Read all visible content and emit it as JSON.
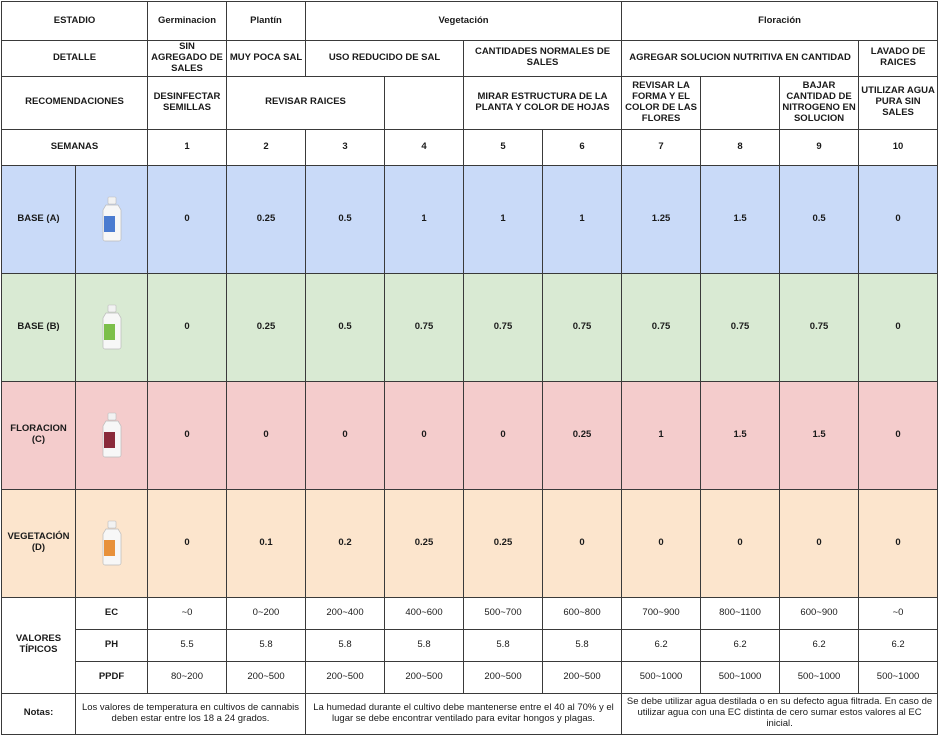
{
  "header": {
    "estadio_label": "ESTADIO",
    "estadios": [
      "Germinacion",
      "Plantín",
      "Vegetación",
      "Floración"
    ],
    "detalle_label": "DETALLE",
    "detalles": [
      "SIN AGREGADO DE SALES",
      "MUY POCA SAL",
      "USO REDUCIDO DE SAL",
      "CANTIDADES NORMALES DE SALES",
      "AGREGAR SOLUCION NUTRITIVA EN CANTIDAD",
      "LAVADO DE RAICES"
    ],
    "recomendaciones_label": "RECOMENDACIONES",
    "recomendaciones": [
      "DESINFECTAR SEMILLAS",
      "REVISAR RAICES",
      "",
      "MIRAR ESTRUCTURA DE LA PLANTA Y COLOR DE HOJAS",
      "REVISAR LA FORMA Y EL COLOR DE LAS FLORES",
      "",
      "BAJAR CANTIDAD DE NITROGENO EN SOLUCION",
      "UTILIZAR AGUA PURA SIN SALES"
    ],
    "semanas_label": "SEMANAS",
    "semanas": [
      "1",
      "2",
      "3",
      "4",
      "5",
      "6",
      "7",
      "8",
      "9",
      "10"
    ]
  },
  "products": [
    {
      "label": "BASE (A)",
      "bottle_icon": "blue-bottle-icon",
      "color": "#c9daf8",
      "label_color": "#4a7bd0",
      "values": [
        "0",
        "0.25",
        "0.5",
        "1",
        "1",
        "1",
        "1.25",
        "1.5",
        "0.5",
        "0"
      ]
    },
    {
      "label": "BASE (B)",
      "bottle_icon": "green-bottle-icon",
      "color": "#d9ead3",
      "label_color": "#7cbf4a",
      "values": [
        "0",
        "0.25",
        "0.5",
        "0.75",
        "0.75",
        "0.75",
        "0.75",
        "0.75",
        "0.75",
        "0"
      ]
    },
    {
      "label": "FLORACION (C)",
      "bottle_icon": "red-bottle-icon",
      "color": "#f4cccc",
      "label_color": "#8a2a3a",
      "values": [
        "0",
        "0",
        "0",
        "0",
        "0",
        "0.25",
        "1",
        "1.5",
        "1.5",
        "0"
      ]
    },
    {
      "label": "VEGETACIÓN (D)",
      "bottle_icon": "orange-bottle-icon",
      "color": "#fce5cd",
      "label_color": "#e8913a",
      "values": [
        "0",
        "0.1",
        "0.2",
        "0.25",
        "0.25",
        "0",
        "0",
        "0",
        "0",
        "0"
      ]
    }
  ],
  "valores": {
    "label": "VALORES TÍPICOS",
    "rows": [
      {
        "name": "EC",
        "values": [
          "~0",
          "0~200",
          "200~400",
          "400~600",
          "500~700",
          "600~800",
          "700~900",
          "800~1100",
          "600~900",
          "~0"
        ]
      },
      {
        "name": "PH",
        "values": [
          "5.5",
          "5.8",
          "5.8",
          "5.8",
          "5.8",
          "5.8",
          "6.2",
          "6.2",
          "6.2",
          "6.2"
        ]
      },
      {
        "name": "PPDF",
        "values": [
          "80~200",
          "200~500",
          "200~500",
          "200~500",
          "200~500",
          "200~500",
          "500~1000",
          "500~1000",
          "500~1000",
          "500~1000"
        ]
      }
    ]
  },
  "notas": {
    "label": "Notas:",
    "items": [
      "Los valores de temperatura en cultivos de cannabis deben estar entre los 18 a 24 grados.",
      "La humedad durante el cultivo debe mantenerse entre el 40 al 70% y el lugar se debe encontrar ventilado para evitar hongos y plagas.",
      "Se debe utilizar agua destilada o en su defecto agua filtrada. En caso de utilizar agua con una EC distinta de cero sumar estos valores al EC inicial."
    ]
  }
}
